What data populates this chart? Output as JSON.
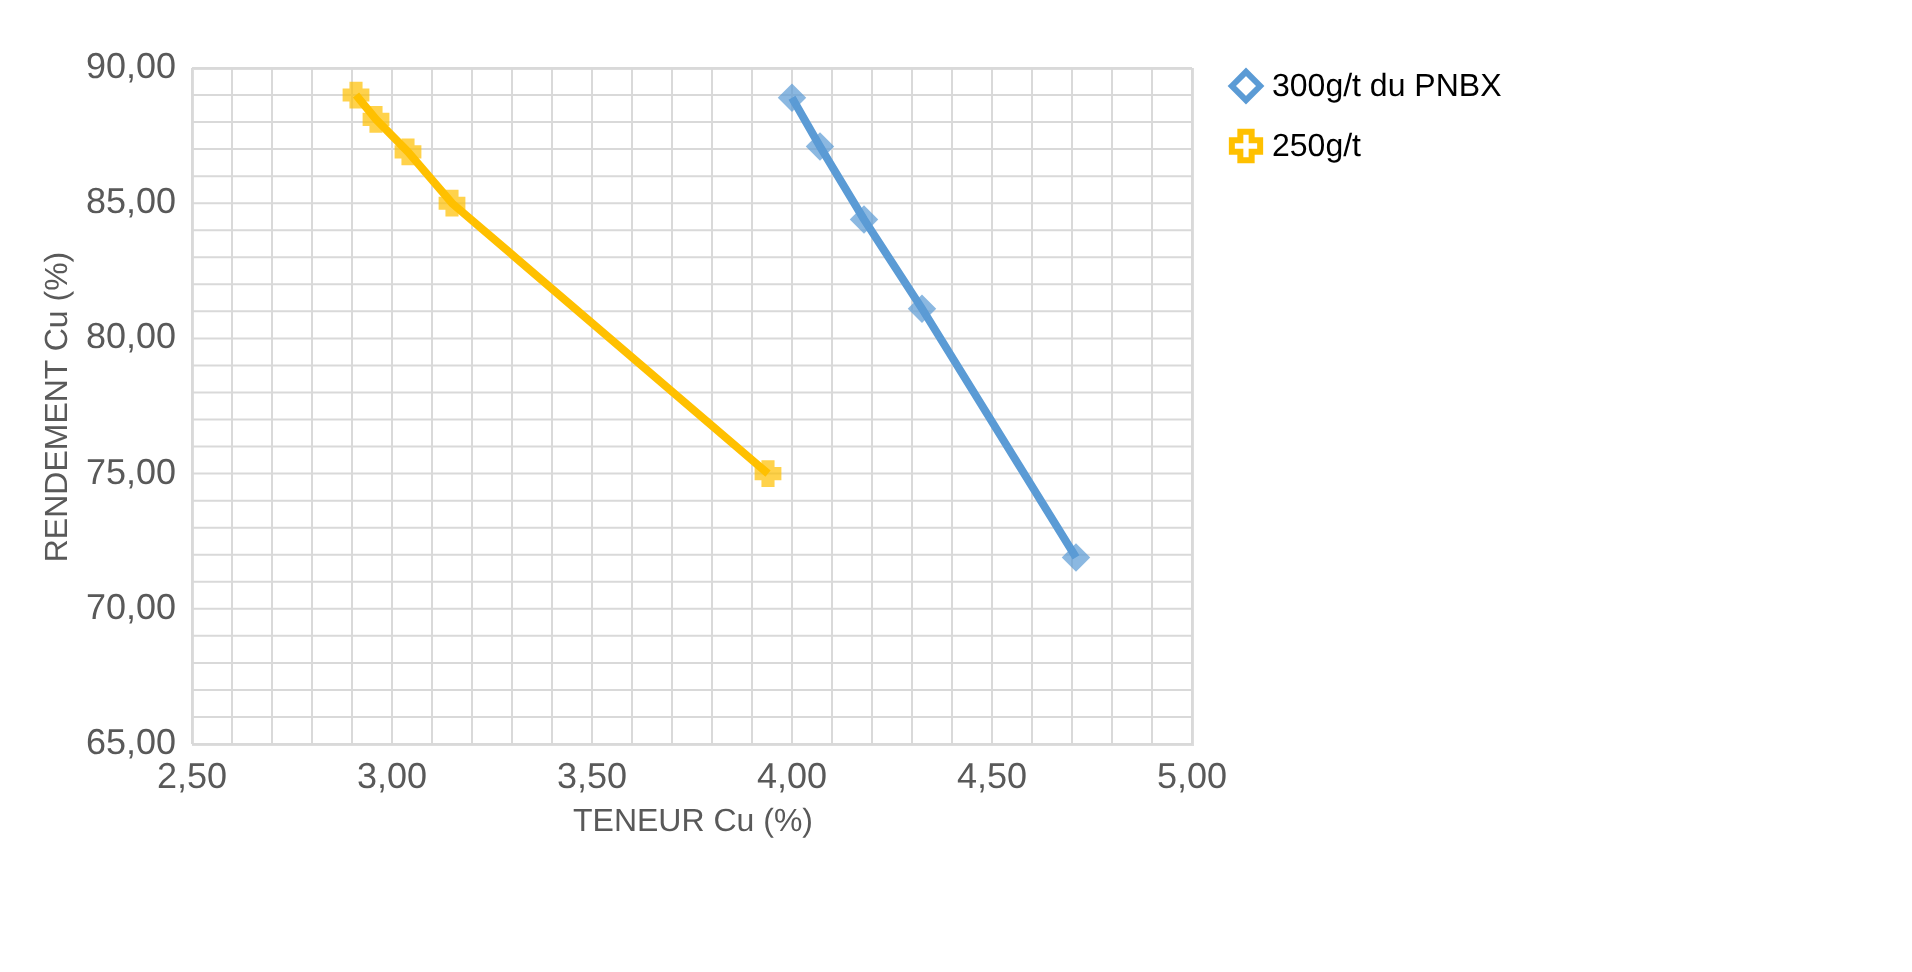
{
  "chart_data": {
    "type": "line",
    "xlabel": "TENEUR Cu (%)",
    "ylabel": "RENDEMENT Cu (%)",
    "series": [
      {
        "name": "300g/t du PNBX",
        "color": "#5b9bd5",
        "marker": "diamond",
        "x": [
          4.0,
          4.07,
          4.18,
          4.325,
          4.71
        ],
        "values": [
          88.9,
          87.1,
          84.4,
          81.1,
          71.9
        ]
      },
      {
        "name": "250g/t",
        "color": "#ffc000",
        "marker": "cross",
        "x": [
          2.91,
          2.96,
          3.04,
          3.15,
          3.94
        ],
        "values": [
          89.0,
          88.1,
          86.9,
          85.0,
          75.0
        ]
      }
    ],
    "xlim": [
      2.5,
      5.0
    ],
    "ylim": [
      65,
      90
    ],
    "xticks": [
      {
        "value": 2.5,
        "label": "2,50"
      },
      {
        "value": 2.6,
        "label": null
      },
      {
        "value": 2.7,
        "label": null
      },
      {
        "value": 2.8,
        "label": null
      },
      {
        "value": 2.9,
        "label": null
      },
      {
        "value": 3.0,
        "label": "3,00"
      },
      {
        "value": 3.1,
        "label": null
      },
      {
        "value": 3.2,
        "label": null
      },
      {
        "value": 3.3,
        "label": null
      },
      {
        "value": 3.4,
        "label": null
      },
      {
        "value": 3.5,
        "label": "3,50"
      },
      {
        "value": 3.6,
        "label": null
      },
      {
        "value": 3.7,
        "label": null
      },
      {
        "value": 3.8,
        "label": null
      },
      {
        "value": 3.9,
        "label": null
      },
      {
        "value": 4.0,
        "label": "4,00"
      },
      {
        "value": 4.1,
        "label": null
      },
      {
        "value": 4.2,
        "label": null
      },
      {
        "value": 4.3,
        "label": null
      },
      {
        "value": 4.4,
        "label": null
      },
      {
        "value": 4.5,
        "label": "4,50"
      },
      {
        "value": 4.6,
        "label": null
      },
      {
        "value": 4.7,
        "label": null
      },
      {
        "value": 4.8,
        "label": null
      },
      {
        "value": 4.9,
        "label": null
      },
      {
        "value": 5.0,
        "label": "5,00"
      }
    ],
    "yticks": [
      {
        "value": 65,
        "label": "65,00"
      },
      {
        "value": 66,
        "label": null
      },
      {
        "value": 67,
        "label": null
      },
      {
        "value": 68,
        "label": null
      },
      {
        "value": 69,
        "label": null
      },
      {
        "value": 70,
        "label": "70,00"
      },
      {
        "value": 71,
        "label": null
      },
      {
        "value": 72,
        "label": null
      },
      {
        "value": 73,
        "label": null
      },
      {
        "value": 74,
        "label": null
      },
      {
        "value": 75,
        "label": "75,00"
      },
      {
        "value": 76,
        "label": null
      },
      {
        "value": 77,
        "label": null
      },
      {
        "value": 78,
        "label": null
      },
      {
        "value": 79,
        "label": null
      },
      {
        "value": 80,
        "label": "80,00"
      },
      {
        "value": 81,
        "label": null
      },
      {
        "value": 82,
        "label": null
      },
      {
        "value": 83,
        "label": null
      },
      {
        "value": 84,
        "label": null
      },
      {
        "value": 85,
        "label": "85,00"
      },
      {
        "value": 86,
        "label": null
      },
      {
        "value": 87,
        "label": null
      },
      {
        "value": 88,
        "label": null
      },
      {
        "value": 89,
        "label": null
      },
      {
        "value": 90,
        "label": "90,00"
      }
    ],
    "grid": true,
    "legend": "right",
    "line_style": "solid"
  }
}
